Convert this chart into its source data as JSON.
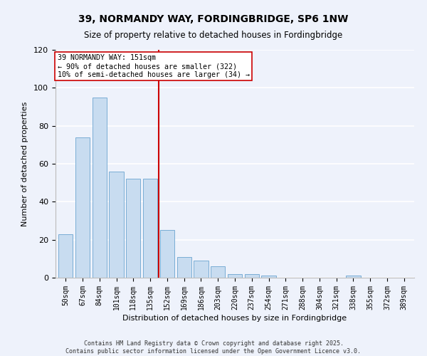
{
  "title": "39, NORMANDY WAY, FORDINGBRIDGE, SP6 1NW",
  "subtitle": "Size of property relative to detached houses in Fordingbridge",
  "xlabel": "Distribution of detached houses by size in Fordingbridge",
  "ylabel": "Number of detached properties",
  "categories": [
    "50sqm",
    "67sqm",
    "84sqm",
    "101sqm",
    "118sqm",
    "135sqm",
    "152sqm",
    "169sqm",
    "186sqm",
    "203sqm",
    "220sqm",
    "237sqm",
    "254sqm",
    "271sqm",
    "288sqm",
    "304sqm",
    "321sqm",
    "338sqm",
    "355sqm",
    "372sqm",
    "389sqm"
  ],
  "values": [
    23,
    74,
    95,
    56,
    52,
    52,
    25,
    11,
    9,
    6,
    2,
    2,
    1,
    0,
    0,
    0,
    0,
    1,
    0,
    0,
    0
  ],
  "bar_color": "#c8dcf0",
  "bar_edge_color": "#7aadd4",
  "marker_line_index": 6,
  "marker_line_color": "#cc0000",
  "annotation_line1": "39 NORMANDY WAY: 151sqm",
  "annotation_line2": "← 90% of detached houses are smaller (322)",
  "annotation_line3": "10% of semi-detached houses are larger (34) →",
  "ylim": [
    0,
    120
  ],
  "yticks": [
    0,
    20,
    40,
    60,
    80,
    100,
    120
  ],
  "background_color": "#eef2fb",
  "grid_color": "#ffffff",
  "footer_line1": "Contains HM Land Registry data © Crown copyright and database right 2025.",
  "footer_line2": "Contains public sector information licensed under the Open Government Licence v3.0."
}
